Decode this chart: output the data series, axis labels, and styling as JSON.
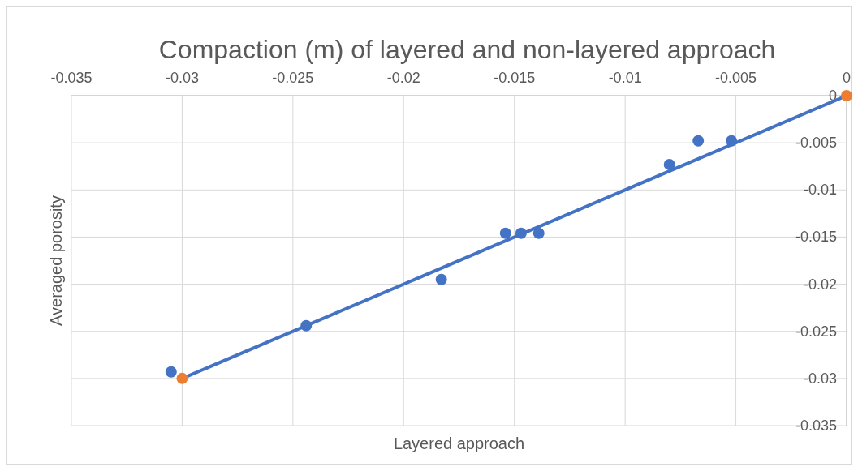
{
  "chart_data": {
    "type": "scatter",
    "title": "Compaction (m) of layered and non-layered approach",
    "xlabel": "Layered approach",
    "ylabel": "Averaged porosity",
    "xlim": [
      -0.035,
      0
    ],
    "ylim": [
      -0.035,
      0
    ],
    "xticks": [
      -0.035,
      -0.03,
      -0.025,
      -0.02,
      -0.015,
      -0.01,
      -0.005,
      0
    ],
    "yticks": [
      -0.035,
      -0.03,
      -0.025,
      -0.02,
      -0.015,
      -0.01,
      -0.005,
      0
    ],
    "grid": true,
    "marker": "circle",
    "series": [
      {
        "type": "line",
        "marker": "none",
        "color": "#4472c4",
        "x": [
          -0.03,
          0
        ],
        "values": [
          -0.03,
          0
        ]
      },
      {
        "color": "#4472c4",
        "x": [
          -0.0305,
          -0.0244,
          -0.0183,
          -0.0154,
          -0.0147,
          -0.0139,
          -0.008,
          -0.0067,
          -0.0052
        ],
        "values": [
          -0.0293,
          -0.0244,
          -0.0195,
          -0.0146,
          -0.0146,
          -0.0146,
          -0.0073,
          -0.0048,
          -0.0048
        ]
      },
      {
        "color": "#ed7d31",
        "x": [
          -0.03,
          0
        ],
        "values": [
          -0.03,
          0
        ]
      }
    ]
  }
}
